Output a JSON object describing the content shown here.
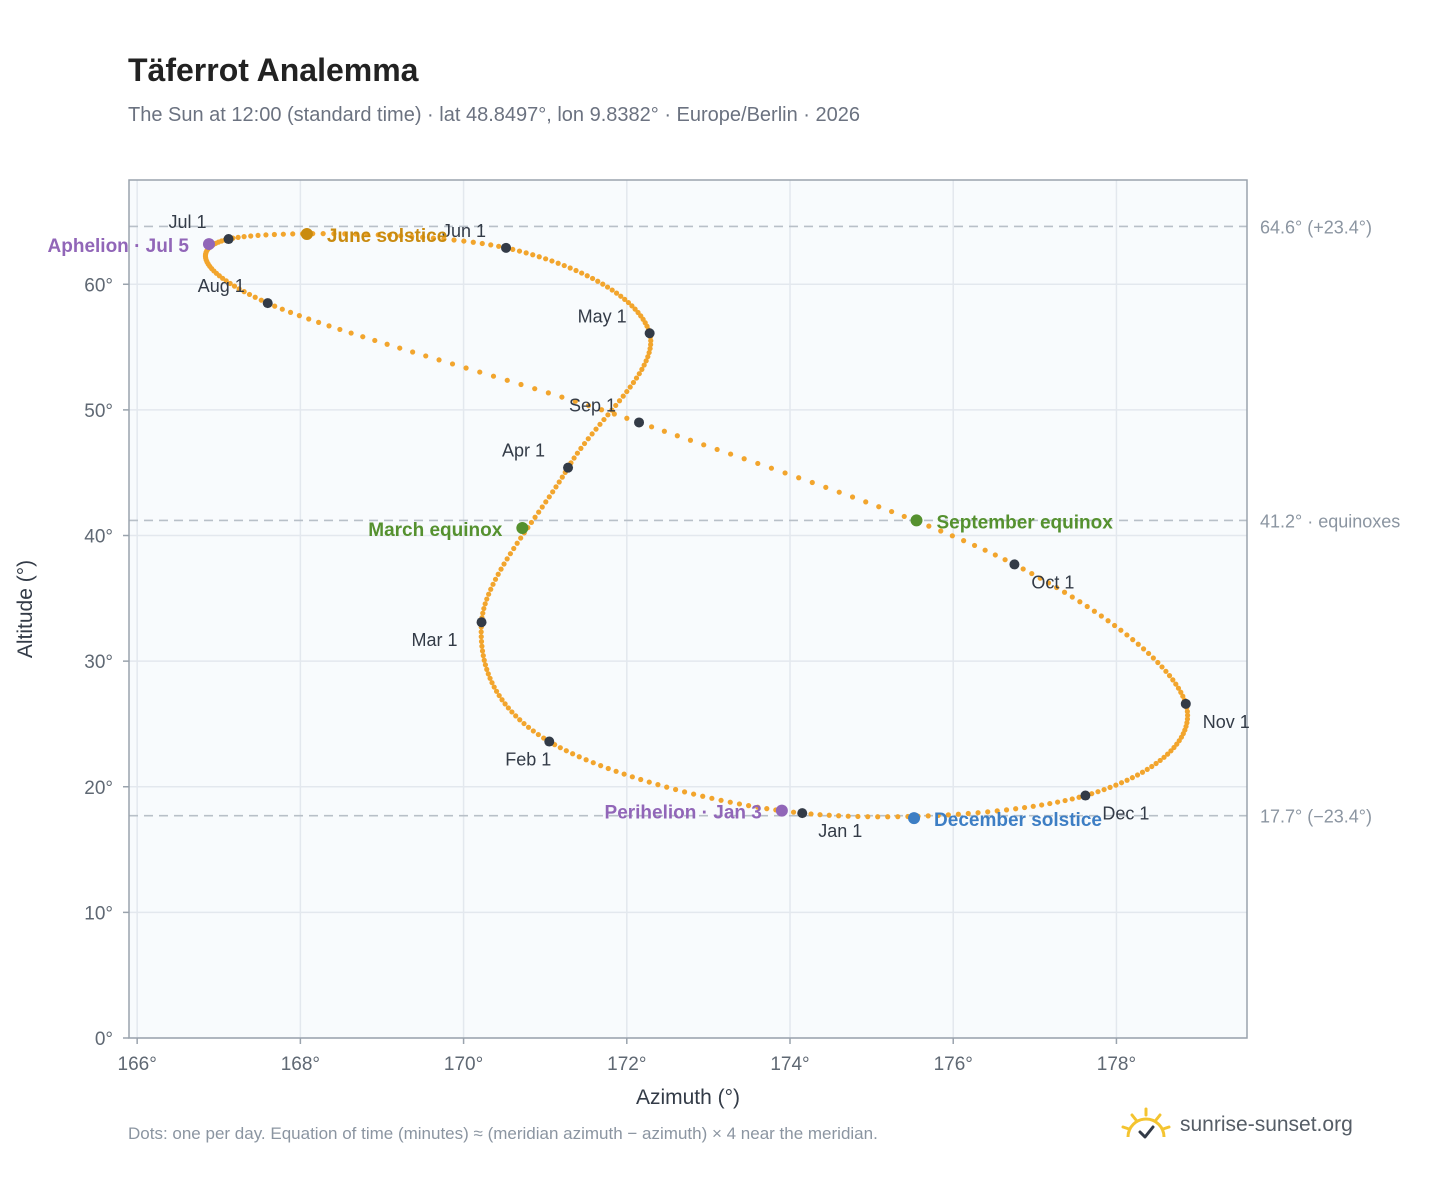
{
  "header": {
    "title": "Täferrot Analemma",
    "subtitle": "The Sun at 12:00 (standard time) · lat 48.8497°, lon 9.8382° · Europe/Berlin · 2026"
  },
  "footer": {
    "note": "Dots: one per day. Equation of time (minutes) ≈ (meridian azimuth − azimuth) × 4 near the meridian.",
    "brand": "sunrise-sunset.org",
    "brand_icon": "sun-logo-icon"
  },
  "colors": {
    "path": "#f2a52d",
    "month": "#333b47",
    "solstice_june": "#c98b10",
    "solstice_december": "#3d7ec4",
    "equinox": "#55912f",
    "apsis": "#9166b8",
    "plot_bg": "#f8fbfd",
    "grid": "#e3e8ee",
    "reference_line": "#b8c0c8"
  },
  "chart_data": {
    "type": "scatter",
    "title": "Täferrot Analemma",
    "xlabel": "Azimuth (°)",
    "ylabel": "Altitude (°)",
    "xlim": [
      165.9,
      179.6
    ],
    "ylim": [
      0,
      68.3
    ],
    "x_ticks": [
      166,
      168,
      170,
      172,
      174,
      176,
      178
    ],
    "x_tick_labels": [
      "166°",
      "168°",
      "170°",
      "172°",
      "174°",
      "176°",
      "178°"
    ],
    "y_ticks": [
      0,
      10,
      20,
      30,
      40,
      50,
      60
    ],
    "y_tick_labels": [
      "0°",
      "10°",
      "20°",
      "30°",
      "40°",
      "50°",
      "60°"
    ],
    "grid": true,
    "series": [
      {
        "type": "daily-path",
        "points_per_day": 1,
        "anchors": [
          {
            "x": 174.15,
            "y": 17.9
          },
          {
            "x": 171.05,
            "y": 23.6
          },
          {
            "x": 170.22,
            "y": 33.1
          },
          {
            "x": 171.28,
            "y": 45.4
          },
          {
            "x": 172.28,
            "y": 56.1
          },
          {
            "x": 170.52,
            "y": 62.9
          },
          {
            "x": 167.12,
            "y": 63.6
          },
          {
            "x": 167.6,
            "y": 58.5
          },
          {
            "x": 172.15,
            "y": 49.0
          },
          {
            "x": 176.75,
            "y": 37.7
          },
          {
            "x": 178.85,
            "y": 26.6
          },
          {
            "x": 177.62,
            "y": 19.3
          }
        ],
        "cycle_days": [
          0,
          31,
          59,
          90,
          120,
          151,
          181,
          212,
          243,
          273,
          304,
          334,
          365
        ]
      }
    ],
    "month_markers": [
      {
        "label": "Jan 1",
        "x": 174.15,
        "y": 17.9
      },
      {
        "label": "Feb 1",
        "x": 171.05,
        "y": 23.6
      },
      {
        "label": "Mar 1",
        "x": 170.22,
        "y": 33.1
      },
      {
        "label": "Apr 1",
        "x": 171.28,
        "y": 45.4
      },
      {
        "label": "May 1",
        "x": 172.28,
        "y": 56.1
      },
      {
        "label": "Jun 1",
        "x": 170.52,
        "y": 62.9
      },
      {
        "label": "Jul 1",
        "x": 167.12,
        "y": 63.6
      },
      {
        "label": "Aug 1",
        "x": 167.6,
        "y": 58.5
      },
      {
        "label": "Sep 1",
        "x": 172.15,
        "y": 49.0
      },
      {
        "label": "Oct 1",
        "x": 176.75,
        "y": 37.7
      },
      {
        "label": "Nov 1",
        "x": 178.85,
        "y": 26.6
      },
      {
        "label": "Dec 1",
        "x": 177.62,
        "y": 19.3
      }
    ],
    "events": [
      {
        "label": "June solstice",
        "kind": "solstice_june",
        "x": 168.08,
        "y": 64.0
      },
      {
        "label": "December solstice",
        "kind": "solstice_december",
        "x": 175.52,
        "y": 17.5
      },
      {
        "label": "March equinox",
        "kind": "equinox",
        "x": 170.72,
        "y": 40.6
      },
      {
        "label": "September equinox",
        "kind": "equinox",
        "x": 175.55,
        "y": 41.2
      },
      {
        "label": "Aphelion · Jul 5",
        "kind": "apsis",
        "x": 166.88,
        "y": 63.2
      },
      {
        "label": "Perihelion · Jan 3",
        "kind": "apsis",
        "x": 173.9,
        "y": 18.1
      }
    ],
    "reference_lines": [
      {
        "y": 64.6,
        "label": "64.6° (+23.4°)"
      },
      {
        "y": 41.2,
        "label": "41.2° · equinoxes"
      },
      {
        "y": 17.7,
        "label": "17.7° (−23.4°)"
      }
    ]
  }
}
